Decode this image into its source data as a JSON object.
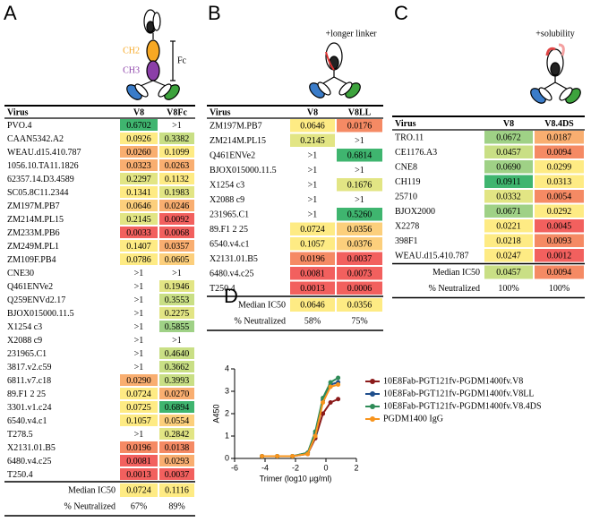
{
  "panel_labels": [
    "A",
    "B",
    "C",
    "D"
  ],
  "panels": [
    {
      "annotations": [
        "CH2",
        "CH3",
        "Fc"
      ],
      "table": {
        "columns": [
          "Virus",
          "V8",
          "V8Fc"
        ],
        "rows": [
          [
            "PVO.4",
            "0.6702",
            ">1"
          ],
          [
            "CAAN5342.A2",
            "0.0926",
            "0.3382"
          ],
          [
            "WEAU.d15.410.787",
            "0.0260",
            "0.1099"
          ],
          [
            "1056.10.TA11.1826",
            "0.0323",
            "0.0263"
          ],
          [
            "62357.14.D3.4589",
            "0.2297",
            "0.1132"
          ],
          [
            "SC05.8C11.2344",
            "0.1341",
            "0.1983"
          ],
          [
            "ZM197M.PB7",
            "0.0646",
            "0.0246"
          ],
          [
            "ZM214M.PL15",
            "0.2145",
            "0.0092"
          ],
          [
            "ZM233M.PB6",
            "0.0033",
            "0.0068"
          ],
          [
            "ZM249M.PL1",
            "0.1407",
            "0.0357"
          ],
          [
            "ZM109F.PB4",
            "0.0786",
            "0.0605"
          ],
          [
            "CNE30",
            ">1",
            ">1"
          ],
          [
            "Q461ENVe2",
            ">1",
            "0.1946"
          ],
          [
            "Q259ENVd2.17",
            ">1",
            "0.3553"
          ],
          [
            "BJOX015000.11.5",
            ">1",
            "0.2275"
          ],
          [
            "X1254 c3",
            ">1",
            "0.5855"
          ],
          [
            "X2088 c9",
            ">1",
            ">1"
          ],
          [
            "231965.C1",
            ">1",
            "0.4640"
          ],
          [
            "3817.v2.c59",
            ">1",
            "0.3662"
          ],
          [
            "6811.v7.c18",
            "0.0290",
            "0.3993"
          ],
          [
            "89.F1 2 25",
            "0.0724",
            "0.0270"
          ],
          [
            "3301.v1.c24",
            "0.0725",
            "0.6894"
          ],
          [
            "6540.v4.c1",
            "0.1057",
            "0.0554"
          ],
          [
            "T278.5",
            ">1",
            "0.2842"
          ],
          [
            "X2131.01.B5",
            "0.0196",
            "0.0138"
          ],
          [
            "6480.v4.c25",
            "0.0081",
            "0.0293"
          ],
          [
            "T250.4",
            "0.0013",
            "0.0037"
          ]
        ],
        "row_colors": [
          [
            "#3fb56f",
            "#ffffff"
          ],
          [
            "#feeb84",
            "#c9df85"
          ],
          [
            "#f9ae70",
            "#feeb84"
          ],
          [
            "#f9ae70",
            "#f9ae70"
          ],
          [
            "#e2e584",
            "#feeb84"
          ],
          [
            "#feeb84",
            "#e2e584"
          ],
          [
            "#fccf7c",
            "#f9ae70"
          ],
          [
            "#e2e584",
            "#f2605e"
          ],
          [
            "#f2605e",
            "#f2605e"
          ],
          [
            "#feeb84",
            "#f9ae70"
          ],
          [
            "#feeb84",
            "#fccf7c"
          ],
          [
            "#ffffff",
            "#ffffff"
          ],
          [
            "#ffffff",
            "#e2e584"
          ],
          [
            "#ffffff",
            "#c9df85"
          ],
          [
            "#ffffff",
            "#e2e584"
          ],
          [
            "#ffffff",
            "#9fd186"
          ],
          [
            "#ffffff",
            "#ffffff"
          ],
          [
            "#ffffff",
            "#c9df85"
          ],
          [
            "#ffffff",
            "#c9df85"
          ],
          [
            "#f9ae70",
            "#c9df85"
          ],
          [
            "#feeb84",
            "#f9ae70"
          ],
          [
            "#feeb84",
            "#3fb56f"
          ],
          [
            "#feeb84",
            "#fccf7c"
          ],
          [
            "#ffffff",
            "#e2e584"
          ],
          [
            "#f58a64",
            "#f58a64"
          ],
          [
            "#f2605e",
            "#f9ae70"
          ],
          [
            "#f2605e",
            "#f2605e"
          ]
        ],
        "summary": [
          [
            "Median IC50",
            "0.0724",
            "0.1116"
          ],
          [
            "% Neutralized",
            "67%",
            "89%"
          ]
        ],
        "summary_colors": [
          [
            "#feeb84",
            "#feeb84"
          ],
          [
            "#ffffff",
            "#ffffff"
          ]
        ]
      }
    },
    {
      "annotations": [
        "+longer linker"
      ],
      "table": {
        "columns": [
          "Virus",
          "V8",
          "V8LL"
        ],
        "rows": [
          [
            "ZM197M.PB7",
            "0.0646",
            "0.0176"
          ],
          [
            "ZM214M.PL15",
            "0.2145",
            ">1"
          ],
          [
            "Q461ENVe2",
            ">1",
            "0.6814"
          ],
          [
            "BJOX015000.11.5",
            ">1",
            ">1"
          ],
          [
            "X1254 c3",
            ">1",
            "0.1676"
          ],
          [
            "X2088 c9",
            ">1",
            ">1"
          ],
          [
            "231965.C1",
            ">1",
            "0.5260"
          ],
          [
            "89.F1 2 25",
            "0.0724",
            "0.0356"
          ],
          [
            "6540.v4.c1",
            "0.1057",
            "0.0376"
          ],
          [
            "X2131.01.B5",
            "0.0196",
            "0.0037"
          ],
          [
            "6480.v4.c25",
            "0.0081",
            "0.0073"
          ],
          [
            "T250.4",
            "0.0013",
            "0.0006"
          ]
        ],
        "row_colors": [
          [
            "#feeb84",
            "#f58a64"
          ],
          [
            "#e2e584",
            "#ffffff"
          ],
          [
            "#ffffff",
            "#3fb56f"
          ],
          [
            "#ffffff",
            "#ffffff"
          ],
          [
            "#ffffff",
            "#e2e584"
          ],
          [
            "#ffffff",
            "#ffffff"
          ],
          [
            "#ffffff",
            "#3fb56f"
          ],
          [
            "#feeb84",
            "#fccf7c"
          ],
          [
            "#feeb84",
            "#fccf7c"
          ],
          [
            "#f58a64",
            "#f2605e"
          ],
          [
            "#f2605e",
            "#f2605e"
          ],
          [
            "#f2605e",
            "#f2605e"
          ]
        ],
        "summary": [
          [
            "Median IC50",
            "0.0646",
            "0.0356"
          ],
          [
            "% Neutralized",
            "58%",
            "75%"
          ]
        ],
        "summary_colors": [
          [
            "#feeb84",
            "#feeb84"
          ],
          [
            "#ffffff",
            "#ffffff"
          ]
        ]
      }
    },
    {
      "annotations": [
        "+solubility"
      ],
      "table": {
        "columns": [
          "Virus",
          "V8",
          "V8.4DS"
        ],
        "rows": [
          [
            "TRO.11",
            "0.0672",
            "0.0187"
          ],
          [
            "CE1176.A3",
            "0.0457",
            "0.0094"
          ],
          [
            "CNE8",
            "0.0690",
            "0.0299"
          ],
          [
            "CH119",
            "0.0911",
            "0.0313"
          ],
          [
            "25710",
            "0.0332",
            "0.0054"
          ],
          [
            "BJOX2000",
            "0.0671",
            "0.0292"
          ],
          [
            "X2278",
            "0.0221",
            "0.0045"
          ],
          [
            "398F1",
            "0.0218",
            "0.0093"
          ],
          [
            "WEAU.d15.410.787",
            "0.0247",
            "0.0012"
          ]
        ],
        "row_colors": [
          [
            "#9fd186",
            "#f9ae70"
          ],
          [
            "#c9df85",
            "#f58a64"
          ],
          [
            "#9fd186",
            "#feeb84"
          ],
          [
            "#3fb56f",
            "#feeb84"
          ],
          [
            "#e2e584",
            "#f58a64"
          ],
          [
            "#9fd186",
            "#feeb84"
          ],
          [
            "#feeb84",
            "#f2605e"
          ],
          [
            "#feeb84",
            "#f58a64"
          ],
          [
            "#feeb84",
            "#f2605e"
          ]
        ],
        "summary": [
          [
            "Median IC50",
            "0.0457",
            "0.0094"
          ],
          [
            "% Neutralized",
            "100%",
            "100%"
          ]
        ],
        "summary_colors": [
          [
            "#c9df85",
            "#f58a64"
          ],
          [
            "#ffffff",
            "#ffffff"
          ]
        ]
      }
    }
  ],
  "chart_data": {
    "type": "line",
    "xlabel": "Trimer (log10 µg/ml)",
    "ylabel": "A450",
    "x": [
      -4.2,
      -3.2,
      -2.2,
      -1.2,
      -0.7,
      -0.2,
      0.3,
      0.8
    ],
    "series": [
      {
        "name": "10E8Fab-PGT121fv-PGDM1400fv.V8",
        "color": "#8b1a1a",
        "values": [
          0.1,
          0.1,
          0.1,
          0.2,
          0.9,
          2.0,
          2.5,
          2.65
        ]
      },
      {
        "name": "10E8Fab-PGT121fv-PGDM1400fv.V8LL",
        "color": "#1f4e8c",
        "values": [
          0.1,
          0.1,
          0.1,
          0.25,
          1.1,
          2.6,
          3.3,
          3.4
        ]
      },
      {
        "name": "10E8Fab-PGT121fv-PGDM1400fv.V8.4DS",
        "color": "#2e8b57",
        "values": [
          0.1,
          0.1,
          0.1,
          0.25,
          1.2,
          2.7,
          3.4,
          3.6
        ]
      },
      {
        "name": "PGDM1400 IgG",
        "color": "#f7941d",
        "values": [
          0.1,
          0.1,
          0.1,
          0.2,
          1.0,
          2.5,
          3.2,
          3.3
        ]
      }
    ],
    "xlim": [
      -6,
      2
    ],
    "ylim": [
      0,
      4
    ],
    "xticks": [
      -6,
      -4,
      -2,
      0,
      2
    ],
    "yticks": [
      0,
      1,
      2,
      3,
      4
    ]
  }
}
